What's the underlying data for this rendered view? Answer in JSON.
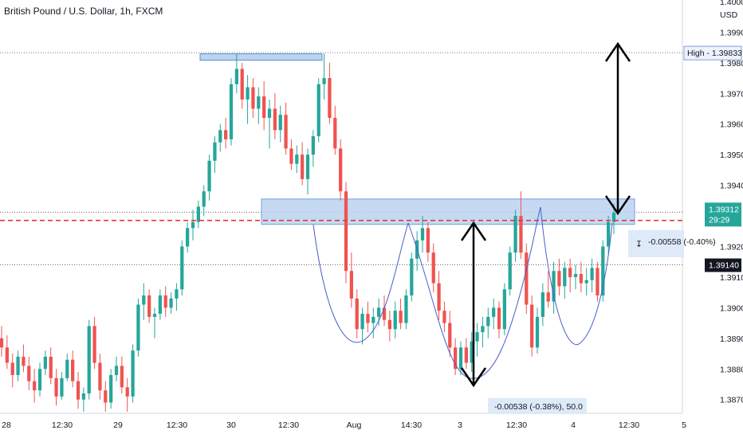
{
  "header": {
    "title": "British Pound / U.S. Dollar, 1h, FXCM"
  },
  "chart_data": {
    "type": "candlestick",
    "title": "British Pound / U.S. Dollar, 1h, FXCM",
    "currency": "USD",
    "ylim": [
      1.38655,
      1.40005
    ],
    "y_ticks": [
      "1.40000",
      "1.39900",
      "1.39800",
      "1.39700",
      "1.39600",
      "1.39500",
      "1.39400",
      "1.39200",
      "1.39100",
      "1.39000",
      "1.38900",
      "1.38800",
      "1.38700"
    ],
    "x_ticks": [
      "28",
      "12:30",
      "29",
      "12:30",
      "30",
      "12:30",
      "Aug",
      "14:30",
      "3",
      "12:30",
      "4",
      "12:30",
      "5"
    ],
    "colors": {
      "up": "#26a69a",
      "down": "#ef5350",
      "overlay": "#bbd4f0",
      "overlay_border": "#5b8fd6",
      "curve": "#4a5ccc",
      "arrow": "#000000",
      "dashed": "#e53935"
    },
    "price_tags": {
      "high": {
        "label": "High",
        "value": "1.39833"
      },
      "last": {
        "value": "1.39312",
        "timer": "29:29"
      },
      "level": {
        "value": "1.39140"
      }
    },
    "measure": {
      "left": "-0.00558 (-0.40%)",
      "bottom": "-0.00538 (-0.38%), 50.0"
    },
    "levels": {
      "high": 1.39833,
      "last": 1.39312,
      "level": 1.3914,
      "dashed": 1.39285
    },
    "zones": [
      {
        "from": 1.39812,
        "to": 1.39824
      },
      {
        "from": 1.39285,
        "to": 1.39355
      }
    ],
    "candles": [
      [
        1.389,
        1.3894,
        1.3884,
        1.3887
      ],
      [
        1.3887,
        1.3891,
        1.388,
        1.3882
      ],
      [
        1.3882,
        1.3885,
        1.3874,
        1.3878
      ],
      [
        1.3878,
        1.3886,
        1.3876,
        1.3884
      ],
      [
        1.3884,
        1.3888,
        1.3879,
        1.3881
      ],
      [
        1.3881,
        1.3884,
        1.3873,
        1.3876
      ],
      [
        1.3876,
        1.388,
        1.3869,
        1.3873
      ],
      [
        1.3873,
        1.3882,
        1.3871,
        1.388
      ],
      [
        1.388,
        1.3886,
        1.3878,
        1.3884
      ],
      [
        1.3884,
        1.3887,
        1.3875,
        1.3877
      ],
      [
        1.3877,
        1.388,
        1.3868,
        1.3871
      ],
      [
        1.3871,
        1.3879,
        1.387,
        1.3877
      ],
      [
        1.3877,
        1.3885,
        1.3876,
        1.3883
      ],
      [
        1.3883,
        1.3886,
        1.3874,
        1.3876
      ],
      [
        1.3876,
        1.3879,
        1.3867,
        1.387
      ],
      [
        1.387,
        1.3874,
        1.3866,
        1.3872
      ],
      [
        1.3872,
        1.3896,
        1.387,
        1.3894
      ],
      [
        1.3894,
        1.3897,
        1.388,
        1.3882
      ],
      [
        1.3882,
        1.3885,
        1.387,
        1.3873
      ],
      [
        1.3873,
        1.3876,
        1.3866,
        1.3869
      ],
      [
        1.3869,
        1.388,
        1.3867,
        1.3878
      ],
      [
        1.3878,
        1.3884,
        1.3876,
        1.3881
      ],
      [
        1.3881,
        1.3884,
        1.3872,
        1.3874
      ],
      [
        1.3874,
        1.3877,
        1.3866,
        1.3871
      ],
      [
        1.3871,
        1.3888,
        1.3869,
        1.3886
      ],
      [
        1.3886,
        1.3903,
        1.3884,
        1.3901
      ],
      [
        1.3901,
        1.3908,
        1.3896,
        1.3904
      ],
      [
        1.3904,
        1.3906,
        1.3895,
        1.3897
      ],
      [
        1.3897,
        1.39,
        1.389,
        1.3898
      ],
      [
        1.3898,
        1.3906,
        1.3896,
        1.3904
      ],
      [
        1.3904,
        1.3907,
        1.3897,
        1.39
      ],
      [
        1.39,
        1.3905,
        1.3898,
        1.3903
      ],
      [
        1.3903,
        1.3908,
        1.3899,
        1.3906
      ],
      [
        1.3906,
        1.3922,
        1.3904,
        1.392
      ],
      [
        1.392,
        1.3928,
        1.3918,
        1.3926
      ],
      [
        1.3926,
        1.3932,
        1.3922,
        1.3928
      ],
      [
        1.3928,
        1.3935,
        1.3926,
        1.3933
      ],
      [
        1.3933,
        1.394,
        1.393,
        1.3938
      ],
      [
        1.3938,
        1.395,
        1.3935,
        1.3948
      ],
      [
        1.3948,
        1.3956,
        1.3944,
        1.3954
      ],
      [
        1.3954,
        1.396,
        1.3951,
        1.3958
      ],
      [
        1.3958,
        1.3962,
        1.3952,
        1.3955
      ],
      [
        1.3955,
        1.3975,
        1.3953,
        1.3973
      ],
      [
        1.3973,
        1.3983,
        1.397,
        1.3978
      ],
      [
        1.3978,
        1.398,
        1.3965,
        1.3968
      ],
      [
        1.3968,
        1.3976,
        1.396,
        1.3972
      ],
      [
        1.3972,
        1.3975,
        1.3962,
        1.3965
      ],
      [
        1.3965,
        1.3972,
        1.396,
        1.3969
      ],
      [
        1.3969,
        1.3974,
        1.3958,
        1.3962
      ],
      [
        1.3962,
        1.3968,
        1.3952,
        1.3965
      ],
      [
        1.3965,
        1.397,
        1.3955,
        1.3958
      ],
      [
        1.3958,
        1.3966,
        1.3954,
        1.3963
      ],
      [
        1.3963,
        1.3967,
        1.395,
        1.3952
      ],
      [
        1.3952,
        1.3955,
        1.3945,
        1.3947
      ],
      [
        1.3947,
        1.3953,
        1.3944,
        1.395
      ],
      [
        1.395,
        1.3954,
        1.394,
        1.3942
      ],
      [
        1.3942,
        1.3952,
        1.3937,
        1.395
      ],
      [
        1.395,
        1.3958,
        1.3946,
        1.3956
      ],
      [
        1.3956,
        1.3975,
        1.3954,
        1.3973
      ],
      [
        1.3973,
        1.3983,
        1.3968,
        1.3975
      ],
      [
        1.3975,
        1.398,
        1.396,
        1.3962
      ],
      [
        1.3962,
        1.3966,
        1.395,
        1.3952
      ],
      [
        1.3952,
        1.3955,
        1.3935,
        1.3938
      ],
      [
        1.3938,
        1.3941,
        1.3908,
        1.3912
      ],
      [
        1.3912,
        1.3918,
        1.39,
        1.3903
      ],
      [
        1.3903,
        1.3906,
        1.389,
        1.3893
      ],
      [
        1.3893,
        1.39,
        1.3888,
        1.3898
      ],
      [
        1.3898,
        1.3902,
        1.3892,
        1.3895
      ],
      [
        1.3895,
        1.39,
        1.389,
        1.3897
      ],
      [
        1.3897,
        1.3903,
        1.3894,
        1.39
      ],
      [
        1.39,
        1.3904,
        1.3894,
        1.3896
      ],
      [
        1.3896,
        1.3899,
        1.3889,
        1.3893
      ],
      [
        1.3893,
        1.3902,
        1.389,
        1.3899
      ],
      [
        1.3899,
        1.3903,
        1.3893,
        1.3895
      ],
      [
        1.3895,
        1.3906,
        1.3893,
        1.3904
      ],
      [
        1.3904,
        1.3918,
        1.3902,
        1.3916
      ],
      [
        1.3916,
        1.3925,
        1.3912,
        1.3922
      ],
      [
        1.3922,
        1.393,
        1.3918,
        1.3926
      ],
      [
        1.3926,
        1.3928,
        1.3915,
        1.3918
      ],
      [
        1.3918,
        1.3921,
        1.3905,
        1.3908
      ],
      [
        1.3908,
        1.3912,
        1.3896,
        1.3899
      ],
      [
        1.3899,
        1.3902,
        1.3892,
        1.3895
      ],
      [
        1.3895,
        1.3899,
        1.3884,
        1.3887
      ],
      [
        1.3887,
        1.389,
        1.3878,
        1.388
      ],
      [
        1.388,
        1.3889,
        1.3878,
        1.3887
      ],
      [
        1.3887,
        1.389,
        1.388,
        1.3882
      ],
      [
        1.3882,
        1.3892,
        1.3879,
        1.3889
      ],
      [
        1.3889,
        1.3895,
        1.3884,
        1.3892
      ],
      [
        1.3892,
        1.3897,
        1.3887,
        1.3894
      ],
      [
        1.3894,
        1.39,
        1.389,
        1.3897
      ],
      [
        1.3897,
        1.3903,
        1.3893,
        1.39
      ],
      [
        1.39,
        1.3902,
        1.389,
        1.3893
      ],
      [
        1.3893,
        1.3908,
        1.3891,
        1.3906
      ],
      [
        1.3906,
        1.392,
        1.3904,
        1.3918
      ],
      [
        1.3918,
        1.3932,
        1.3915,
        1.393
      ],
      [
        1.393,
        1.3938,
        1.3916,
        1.3918
      ],
      [
        1.3918,
        1.3921,
        1.3898,
        1.3901
      ],
      [
        1.3901,
        1.3904,
        1.3884,
        1.3887
      ],
      [
        1.3887,
        1.39,
        1.3885,
        1.3897
      ],
      [
        1.3897,
        1.3908,
        1.3894,
        1.3905
      ],
      [
        1.3905,
        1.3912,
        1.39,
        1.3902
      ],
      [
        1.3902,
        1.3915,
        1.3898,
        1.3912
      ],
      [
        1.3912,
        1.3916,
        1.3904,
        1.3907
      ],
      [
        1.3907,
        1.3915,
        1.3903,
        1.3913
      ],
      [
        1.3913,
        1.3916,
        1.3905,
        1.391
      ],
      [
        1.391,
        1.3914,
        1.3906,
        1.3911
      ],
      [
        1.3911,
        1.3915,
        1.3905,
        1.3908
      ],
      [
        1.3908,
        1.3913,
        1.3904,
        1.3909
      ],
      [
        1.3909,
        1.3916,
        1.3905,
        1.3913
      ],
      [
        1.3913,
        1.3915,
        1.3902,
        1.3904
      ],
      [
        1.3904,
        1.3922,
        1.3902,
        1.392
      ],
      [
        1.392,
        1.393,
        1.3917,
        1.3928
      ],
      [
        1.3928,
        1.3934,
        1.3924,
        1.3931
      ]
    ]
  }
}
